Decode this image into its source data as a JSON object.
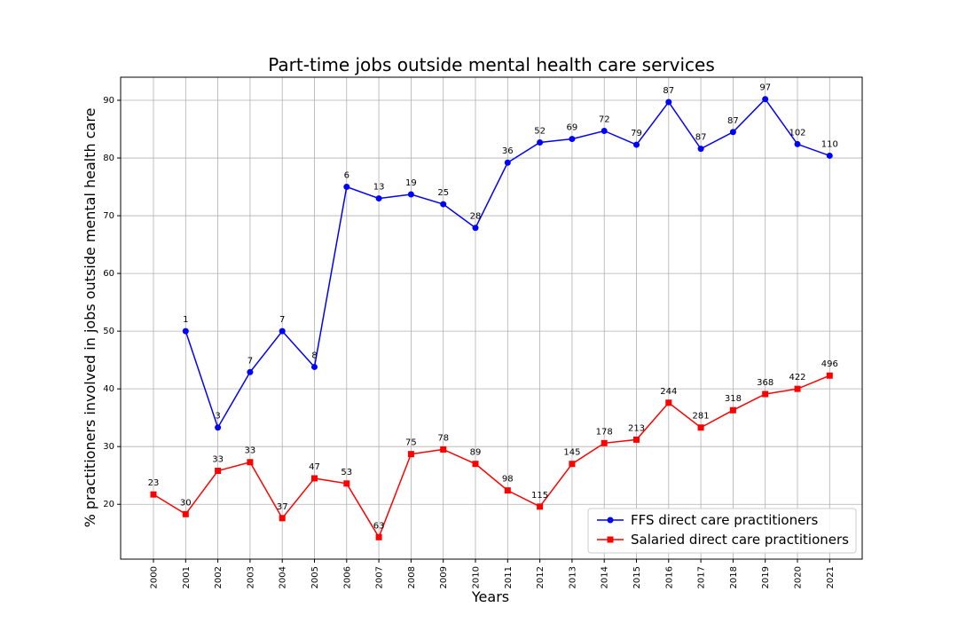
{
  "chart_data": {
    "type": "line",
    "title": "Part-time jobs outside mental health care services",
    "xlabel": "Years",
    "ylabel": "% practitioners involved in jobs outside mental health care",
    "x": [
      2000,
      2001,
      2002,
      2003,
      2004,
      2005,
      2006,
      2007,
      2008,
      2009,
      2010,
      2011,
      2012,
      2013,
      2014,
      2015,
      2016,
      2017,
      2018,
      2019,
      2020,
      2021
    ],
    "ylim": [
      10.5,
      94
    ],
    "yticks": [
      20,
      30,
      40,
      50,
      60,
      70,
      80,
      90
    ],
    "grid": true,
    "legend_position": "lower-right",
    "series": [
      {
        "name": "FFS direct care practitioners",
        "color": "#0000ff",
        "marker": "circle",
        "values": [
          null,
          50.0,
          33.3,
          42.9,
          50.0,
          43.8,
          75.0,
          73.0,
          73.7,
          72.0,
          67.9,
          79.2,
          82.7,
          83.3,
          84.7,
          82.3,
          89.7,
          81.6,
          84.5,
          90.2,
          82.4,
          80.4
        ],
        "labels": [
          null,
          "1",
          "3",
          "7",
          "7",
          "8",
          "6",
          "13",
          "19",
          "25",
          "28",
          "36",
          "52",
          "69",
          "72",
          "79",
          "87",
          "87",
          "87",
          "97",
          "102",
          "110"
        ]
      },
      {
        "name": "Salaried direct care practitioners",
        "color": "#ff0000",
        "marker": "square",
        "values": [
          21.7,
          18.3,
          25.8,
          27.3,
          17.6,
          24.5,
          23.6,
          14.3,
          28.7,
          29.5,
          27.0,
          22.4,
          19.6,
          27.0,
          30.6,
          31.2,
          37.6,
          33.3,
          36.3,
          39.1,
          40.0,
          42.3
        ],
        "labels": [
          "23",
          "30",
          "33",
          "33",
          "37",
          "47",
          "53",
          "63",
          "75",
          "78",
          "89",
          "98",
          "115",
          "145",
          "178",
          "213",
          "244",
          "281",
          "318",
          "368",
          "422",
          "496"
        ]
      }
    ]
  }
}
